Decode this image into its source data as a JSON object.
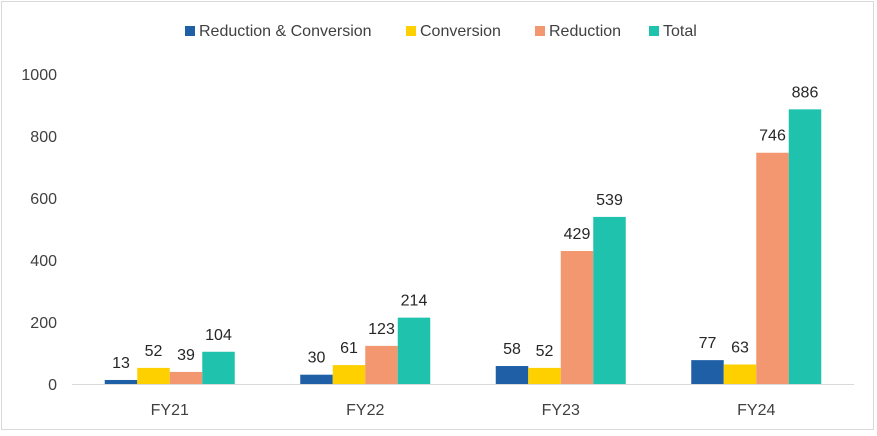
{
  "chart_data": {
    "type": "bar",
    "title": "",
    "xlabel": "",
    "ylabel": "",
    "categories": [
      "FY21",
      "FY22",
      "FY23",
      "FY24"
    ],
    "ylim": [
      0,
      1000
    ],
    "yticks": [
      0,
      200,
      400,
      600,
      800,
      1000
    ],
    "grid": false,
    "legend_position": "top",
    "series": [
      {
        "name": "Reduction & Conversion",
        "color": "#1f5fa6",
        "values": [
          13,
          30,
          58,
          77
        ]
      },
      {
        "name": "Conversion",
        "color": "#ffd000",
        "values": [
          52,
          61,
          52,
          63
        ]
      },
      {
        "name": "Reduction",
        "color": "#f2976f",
        "values": [
          39,
          123,
          429,
          746
        ]
      },
      {
        "name": "Total",
        "color": "#1fc2ad",
        "values": [
          104,
          214,
          539,
          886
        ]
      }
    ]
  }
}
